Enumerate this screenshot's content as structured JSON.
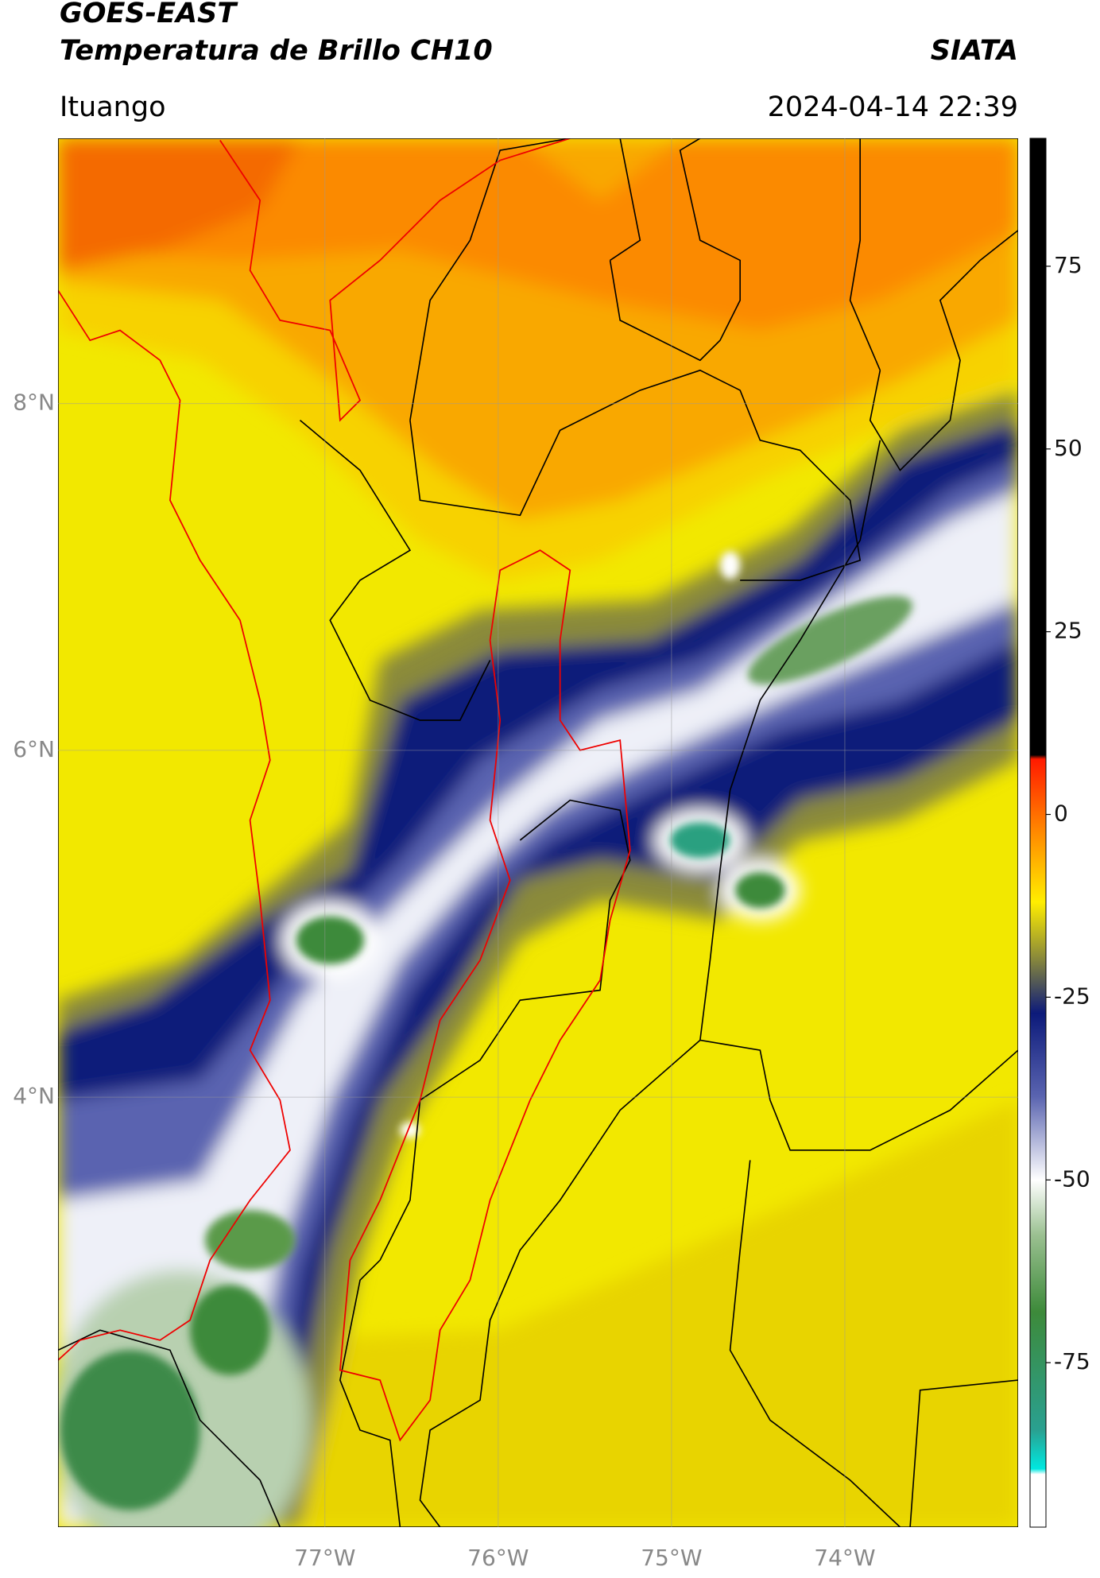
{
  "header": {
    "title": "GOES-EAST",
    "subtitle": "Temperatura de Brillo CH10",
    "source": "SIATA",
    "location": "Ituango",
    "datetime": "2024-04-14 22:39"
  },
  "map": {
    "lon_range": [
      -78.54,
      -73.0
    ],
    "lat_range": [
      1.52,
      9.53
    ],
    "grid": true,
    "lat_ticks": [
      {
        "value": 8,
        "label": "8°N"
      },
      {
        "value": 6,
        "label": "6°N"
      },
      {
        "value": 4,
        "label": "4°N"
      }
    ],
    "lon_ticks": [
      {
        "value": -77,
        "label": "77°W"
      },
      {
        "value": -76,
        "label": "76°W"
      },
      {
        "value": -75,
        "label": "75°W"
      },
      {
        "value": -74,
        "label": "74°W"
      }
    ]
  },
  "colorbar": {
    "range": [
      -97.5,
      92.5
    ],
    "ticks": [
      75,
      50,
      25,
      0,
      -25,
      -50,
      -75
    ]
  }
}
